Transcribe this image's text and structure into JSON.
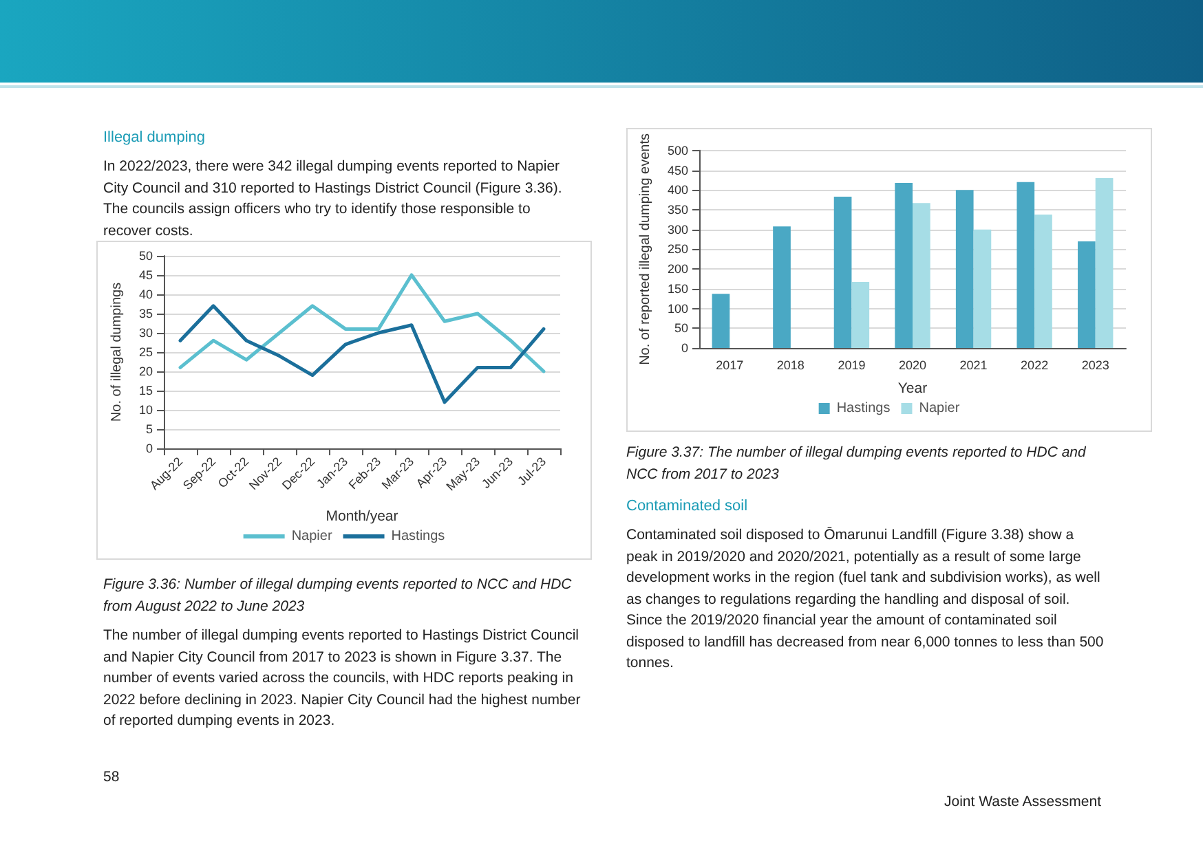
{
  "chart_data": [
    {
      "type": "line",
      "xlabel": "Month/year",
      "ylabel": "No. of illegal dumpings",
      "categories": [
        "Aug-22",
        "Sep-22",
        "Oct-22",
        "Nov-22",
        "Dec-22",
        "Jan-23",
        "Feb-23",
        "Mar-23",
        "Apr-23",
        "May-23",
        "Jun-23",
        "Jul-23"
      ],
      "series": [
        {
          "name": "Napier",
          "color": "#5bbfcf",
          "values": [
            21,
            28,
            23,
            30,
            37,
            31,
            31,
            45,
            33,
            35,
            28,
            20
          ]
        },
        {
          "name": "Hastings",
          "color": "#1b6f9b",
          "values": [
            28,
            37,
            28,
            24,
            19,
            27,
            30,
            32,
            12,
            21,
            21,
            31
          ]
        }
      ],
      "ylim": [
        0,
        50
      ],
      "yticks": [
        0,
        5,
        10,
        15,
        20,
        25,
        30,
        35,
        40,
        45,
        50
      ],
      "grid": "y",
      "legend": "bottom",
      "marker": "none",
      "line_style": "solid",
      "annotations": [
        "Illegal dumping",
        "In 2022/2023, there were 342 illegal dumping events reported to Napier City Council and 310 reported to Hastings District Council (Figure 3.36). The councils assign officers who try to identify those responsible to recover costs.",
        "Figure 3.36: Number of illegal dumping events reported to NCC and HDC from August 2022 to June 2023",
        "The number of illegal dumping events reported to Hastings District Council and Napier City Council from 2017 to 2023 is shown in Figure 3.37. The number of events varied across the councils, with HDC reports peaking in 2022 before declining in 2023. Napier City Council had the highest number of reported dumping events in 2023.",
        "58",
        "Joint Waste Assessment"
      ]
    },
    {
      "type": "bar",
      "xlabel": "Year",
      "ylabel": "No. of reported illegal dumping events",
      "categories": [
        "2017",
        "2018",
        "2019",
        "2020",
        "2021",
        "2022",
        "2023"
      ],
      "series": [
        {
          "name": "Hastings",
          "color": "#4aa8c4",
          "values": [
            137,
            308,
            383,
            418,
            400,
            420,
            270
          ]
        },
        {
          "name": "Napier",
          "color": "#a6dde6",
          "values": [
            null,
            null,
            167,
            367,
            300,
            338,
            430
          ]
        }
      ],
      "ylim": [
        0,
        500
      ],
      "yticks": [
        0,
        50,
        100,
        150,
        200,
        250,
        300,
        350,
        400,
        450,
        500
      ],
      "grid": "y",
      "legend": "bottom",
      "annotations": [
        "Figure 3.37: The number of illegal dumping events reported to HDC and NCC from 2017 to 2023",
        "Contaminated soil",
        "Contaminated soil disposed to Ōmarunui Landfill (Figure 3.38) show a peak in 2019/2020 and 2020/2021, potentially as a result of some large development works in the region (fuel tank and subdivision works), as well as changes to regulations regarding the handling and disposal of soil. Since the 2019/2020 financial year the amount of contaminated soil disposed to landfill has decreased from near 6,000 tonnes to less than 500 tonnes."
      ]
    }
  ]
}
